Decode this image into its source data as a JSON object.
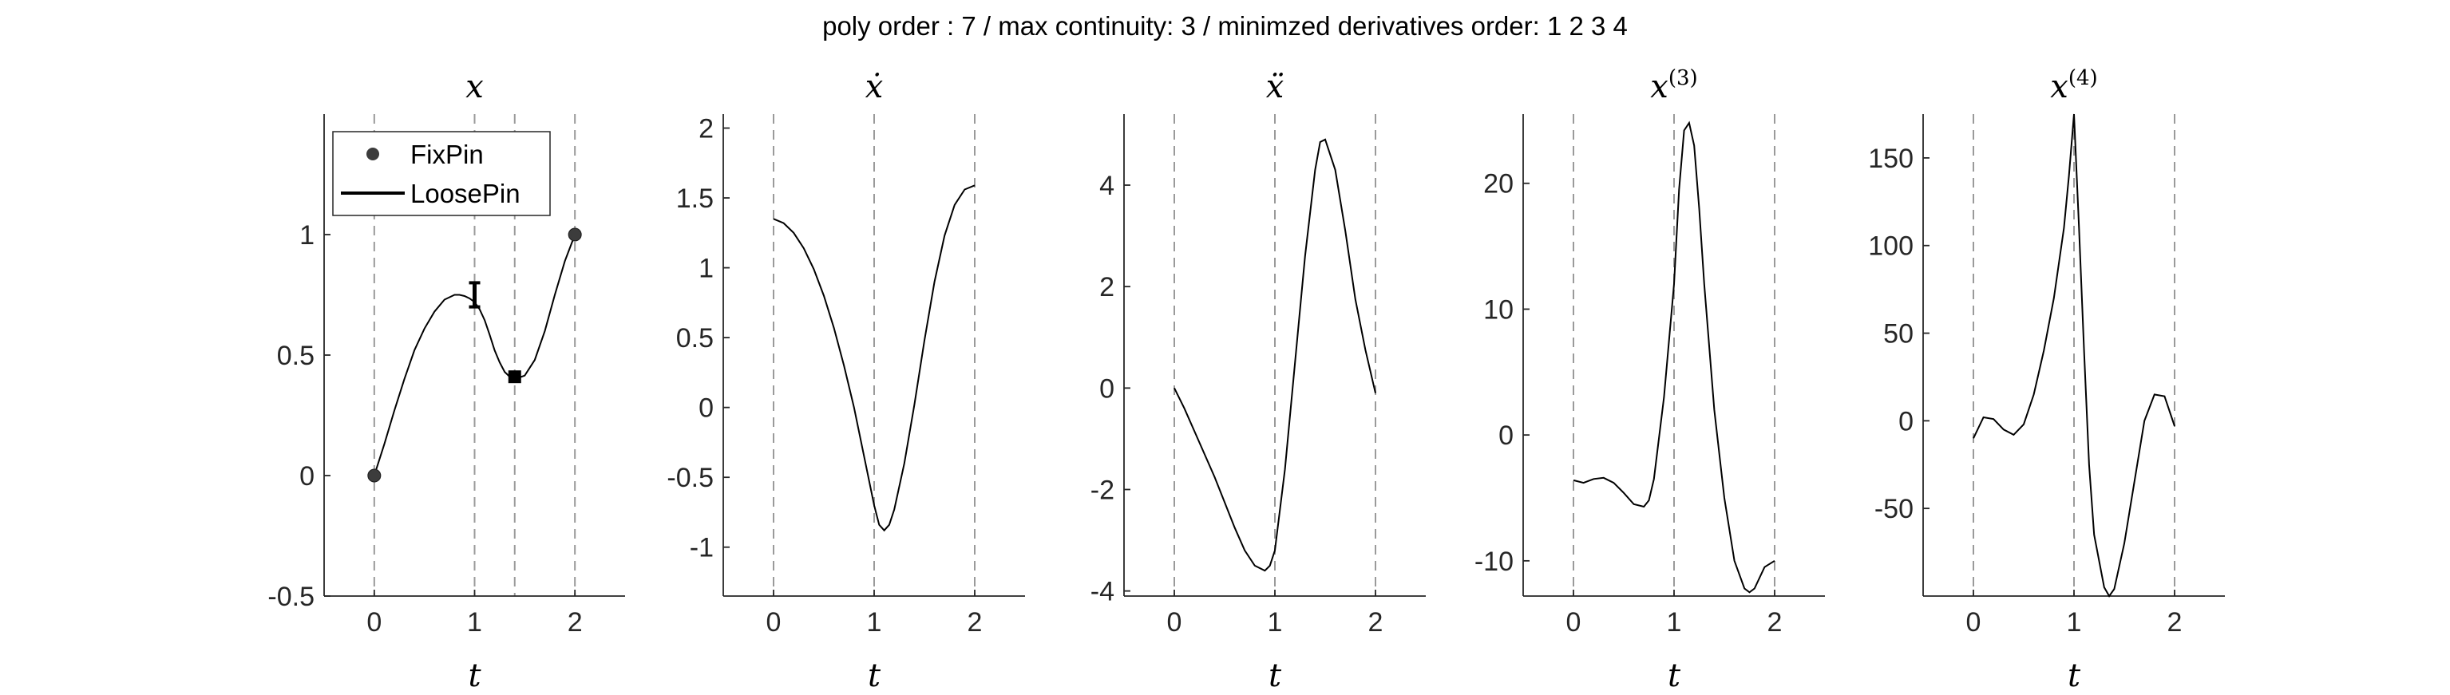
{
  "suptitle": "poly order : 7 / max continuity: 3 / minimzed derivatives order: 1  2  3  4",
  "legend": {
    "fixpin": "FixPin",
    "loosepin": "LoosePin"
  },
  "chart_data": [
    {
      "type": "line",
      "title": "x",
      "xlabel": "t",
      "xlim": [
        -0.5,
        2.5
      ],
      "ylim": [
        -0.5,
        1.5
      ],
      "xticks": [
        0,
        1,
        2
      ],
      "yticks": [
        -0.5,
        0,
        0.5,
        1
      ],
      "ytick_labels": [
        "-0.5",
        "0",
        "0.5",
        "1"
      ],
      "vlines": [
        0,
        1,
        1.4,
        2
      ],
      "x": [
        0,
        0.1,
        0.2,
        0.3,
        0.4,
        0.5,
        0.6,
        0.7,
        0.8,
        0.85,
        0.9,
        0.95,
        1.0,
        1.05,
        1.1,
        1.15,
        1.2,
        1.25,
        1.3,
        1.35,
        1.4,
        1.5,
        1.6,
        1.7,
        1.8,
        1.9,
        2.0
      ],
      "y": [
        0,
        0.13,
        0.27,
        0.4,
        0.52,
        0.61,
        0.68,
        0.73,
        0.75,
        0.75,
        0.745,
        0.735,
        0.72,
        0.69,
        0.645,
        0.585,
        0.52,
        0.47,
        0.43,
        0.41,
        0.4,
        0.415,
        0.48,
        0.6,
        0.75,
        0.89,
        1.0
      ],
      "fixpins": [
        {
          "t": 0,
          "v": 0
        },
        {
          "t": 2,
          "v": 1
        }
      ],
      "loosepin_interval": {
        "t": 1,
        "lo": 0.7,
        "hi": 0.8
      },
      "loosepin_square": {
        "t": 1.4,
        "v": 0.41
      },
      "legend": [
        "FixPin",
        "LoosePin"
      ],
      "legend_loc": "top-left"
    },
    {
      "type": "line",
      "title": "ẋ",
      "xlabel": "t",
      "xlim": [
        -0.5,
        2.5
      ],
      "ylim": [
        -1.35,
        2.1
      ],
      "xticks": [
        0,
        1,
        2
      ],
      "yticks": [
        -1,
        -0.5,
        0,
        0.5,
        1,
        1.5,
        2
      ],
      "ytick_labels": [
        "-1",
        "-0.5",
        "0",
        "0.5",
        "1",
        "1.5",
        "2"
      ],
      "vlines": [
        0,
        1,
        2
      ],
      "x": [
        0,
        0.1,
        0.2,
        0.3,
        0.4,
        0.5,
        0.6,
        0.7,
        0.8,
        0.9,
        1.0,
        1.05,
        1.1,
        1.15,
        1.2,
        1.3,
        1.4,
        1.5,
        1.6,
        1.7,
        1.8,
        1.9,
        2.0
      ],
      "y": [
        1.35,
        1.32,
        1.25,
        1.14,
        0.99,
        0.8,
        0.57,
        0.3,
        0.0,
        -0.35,
        -0.7,
        -0.84,
        -0.88,
        -0.84,
        -0.73,
        -0.4,
        0.02,
        0.48,
        0.9,
        1.23,
        1.45,
        1.56,
        1.59
      ]
    },
    {
      "type": "line",
      "title": "ẍ",
      "xlabel": "t",
      "xlim": [
        -0.5,
        2.5
      ],
      "ylim": [
        -4.1,
        5.4
      ],
      "xticks": [
        0,
        1,
        2
      ],
      "yticks": [
        -4,
        -2,
        0,
        2,
        4
      ],
      "ytick_labels": [
        "-4",
        "-2",
        "0",
        "2",
        "4"
      ],
      "vlines": [
        0,
        1,
        2
      ],
      "x": [
        0,
        0.1,
        0.2,
        0.3,
        0.4,
        0.5,
        0.6,
        0.7,
        0.8,
        0.9,
        0.95,
        1.0,
        1.1,
        1.2,
        1.3,
        1.4,
        1.45,
        1.5,
        1.6,
        1.7,
        1.8,
        1.9,
        2.0
      ],
      "y": [
        0,
        -0.4,
        -0.85,
        -1.3,
        -1.75,
        -2.25,
        -2.75,
        -3.2,
        -3.5,
        -3.6,
        -3.5,
        -3.2,
        -1.6,
        0.5,
        2.6,
        4.3,
        4.85,
        4.9,
        4.3,
        3.1,
        1.75,
        0.75,
        -0.1
      ]
    },
    {
      "type": "line",
      "title": "x(3)",
      "xlabel": "t",
      "xlim": [
        -0.5,
        2.5
      ],
      "ylim": [
        -12.8,
        25.5
      ],
      "xticks": [
        0,
        1,
        2
      ],
      "yticks": [
        -10,
        0,
        10,
        20
      ],
      "ytick_labels": [
        "-10",
        "0",
        "10",
        "20"
      ],
      "vlines": [
        0,
        1,
        2
      ],
      "x": [
        0,
        0.1,
        0.2,
        0.3,
        0.4,
        0.5,
        0.6,
        0.7,
        0.75,
        0.8,
        0.9,
        1.0,
        1.05,
        1.1,
        1.15,
        1.2,
        1.25,
        1.3,
        1.4,
        1.5,
        1.6,
        1.7,
        1.75,
        1.8,
        1.9,
        2.0
      ],
      "y": [
        -3.6,
        -3.8,
        -3.5,
        -3.4,
        -3.8,
        -4.6,
        -5.5,
        -5.7,
        -5.2,
        -3.5,
        3.0,
        12.0,
        19.5,
        24.2,
        24.8,
        23.0,
        18.0,
        12.0,
        2.0,
        -5.0,
        -10.0,
        -12.2,
        -12.5,
        -12.2,
        -10.5,
        -10.0
      ]
    },
    {
      "type": "line",
      "title": "x(4)",
      "xlabel": "t",
      "xlim": [
        -0.5,
        2.5
      ],
      "ylim": [
        -100,
        175
      ],
      "xticks": [
        0,
        1,
        2
      ],
      "yticks": [
        -50,
        0,
        50,
        100,
        150
      ],
      "ytick_labels": [
        "-50",
        "0",
        "50",
        "100",
        "150"
      ],
      "vlines": [
        0,
        1,
        2
      ],
      "x": [
        0,
        0.1,
        0.2,
        0.3,
        0.4,
        0.5,
        0.6,
        0.7,
        0.8,
        0.9,
        0.95,
        1.0,
        1.05,
        1.1,
        1.15,
        1.2,
        1.3,
        1.35,
        1.4,
        1.5,
        1.6,
        1.7,
        1.8,
        1.9,
        2.0
      ],
      "y": [
        -10,
        2,
        1,
        -5,
        -8,
        -2,
        15,
        40,
        70,
        110,
        140,
        175,
        110,
        40,
        -25,
        -65,
        -95,
        -100,
        -96,
        -70,
        -35,
        0,
        15,
        14,
        -3
      ]
    }
  ]
}
